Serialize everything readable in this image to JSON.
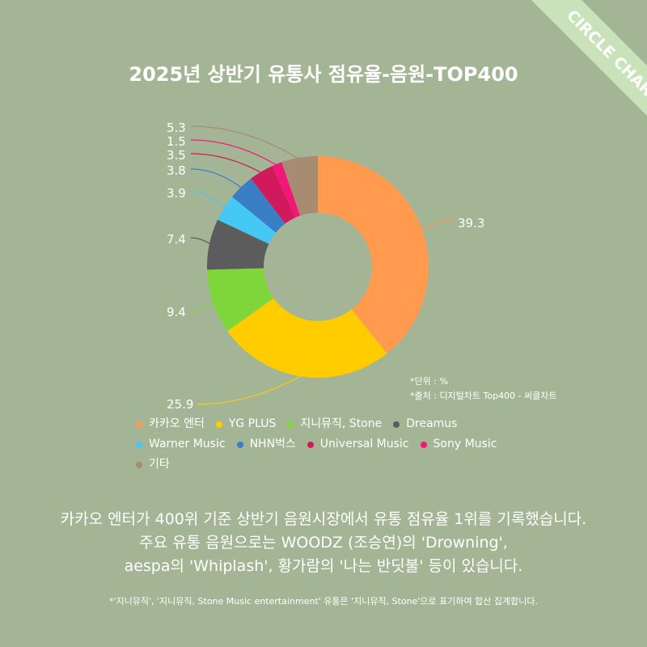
{
  "badge": "CIRCLE CHART",
  "chart_data": {
    "type": "pie",
    "title": "2025년 상반기 유통사 점유율-음원-TOP400",
    "categories": [
      "카카오 엔터",
      "YG PLUS",
      "지니뮤직, Stone",
      "Dreamus",
      "Warner Music",
      "NHN벅스",
      "Universal Music",
      "Sony Music",
      "기타"
    ],
    "values": [
      39.3,
      25.9,
      9.4,
      7.4,
      3.9,
      3.8,
      3.5,
      1.5,
      5.3
    ],
    "value_labels": [
      "39.3",
      "25.9",
      "9.4",
      "7.4",
      "3.9",
      "3.8",
      "3.5",
      "1.5",
      "5.3"
    ],
    "colors": [
      "#ff9a4f",
      "#ffcc00",
      "#7ed63a",
      "#5c5c5c",
      "#45c9f4",
      "#3a7fc6",
      "#d01a5b",
      "#f2187a",
      "#a78c71"
    ],
    "donut": true,
    "legend_position": "bottom",
    "notes": [
      "*단위 : %",
      "*출처 : 디지털차트 Top400 - 써클차트"
    ]
  },
  "description": {
    "lines": [
      "카카오 엔터가 400위 기준 상반기 음원시장에서 유통 점유율 1위를 기록했습니다.",
      "주요 유통 음원으로는 WOODZ (조승연)의 'Drowning',",
      "aespa의 'Whiplash',  황가람의 '나는 반딧불' 등이 있습니다."
    ],
    "footnote": "*'지니뮤직', '지니뮤직, Stone Music entertainment' 유통은 '지니뮤직, Stone'으로 표기하여 합산 집계합니다."
  }
}
